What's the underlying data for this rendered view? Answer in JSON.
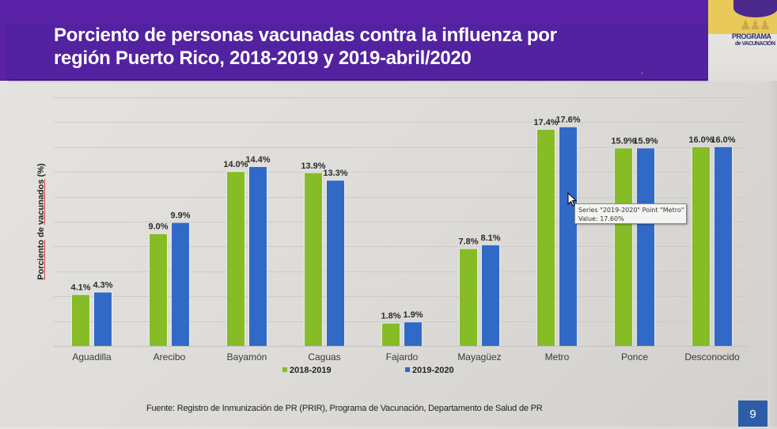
{
  "slide": {
    "title_line1": "Porciento de personas vacunadas contra la influenza por",
    "title_line2": "región Puerto Rico, 2018-2019 y 2019-abril/2020",
    "logo": {
      "text_main": "PROGRAMA",
      "text_sub": "de VACUNACIÓN",
      "icon": "umbrella-family-icon"
    },
    "source": "Fuente: Registro de Inmunización de PR (PRIR), Programa de Vacunación, Departamento de Salud de PR",
    "page_number": "9",
    "colors": {
      "header_purple": "#5222a0",
      "logo_yellow": "#e9c95a",
      "page_badge": "#2e5da8"
    }
  },
  "tooltip": {
    "line1": "Series \"2019-2020\" Point \"Metro\"",
    "line2": "Value: 17.60%"
  },
  "chart_data": {
    "type": "bar",
    "title": "Porciento de personas vacunadas contra la influenza por región Puerto Rico, 2018-2019 y 2019-abril/2020",
    "xlabel": "",
    "ylabel": "Porciento de vacunados (%)",
    "ylim": [
      0,
      20
    ],
    "grid": true,
    "grid_step": 2,
    "y_tick_labels_visible": false,
    "legend_position": "bottom",
    "categories": [
      "Aguadilla",
      "Arecibo",
      "Bayamón",
      "Caguas",
      "Fajardo",
      "Mayagüez",
      "Metro",
      "Ponce",
      "Desconocido"
    ],
    "category_labels_display": [
      "Aguadilla",
      "Arecibo",
      "Bayamón",
      "Caguas",
      "Fajardo",
      "Mayagüez",
      "Metro",
      "Ponce",
      "Desconocido"
    ],
    "series": [
      {
        "name": "2018-2019",
        "color": "#86bc25",
        "values": [
          4.1,
          9.0,
          14.0,
          13.9,
          1.8,
          7.8,
          17.4,
          15.9,
          16.0
        ],
        "labels": [
          "4.1%",
          "9.0%",
          "14.0%",
          "13.9%",
          "1.8%",
          "7.8%",
          "17.4%",
          "15.9%",
          "16.0%"
        ]
      },
      {
        "name": "2019-2020",
        "color": "#3169c6",
        "values": [
          4.3,
          9.9,
          14.4,
          13.3,
          1.9,
          8.1,
          17.6,
          15.9,
          16.0
        ],
        "labels": [
          "4.3%",
          "9.9%",
          "14.4%",
          "13.3%",
          "1.9%",
          "8.1%",
          "17.6%",
          "15.9%",
          "16.0%"
        ]
      }
    ]
  }
}
